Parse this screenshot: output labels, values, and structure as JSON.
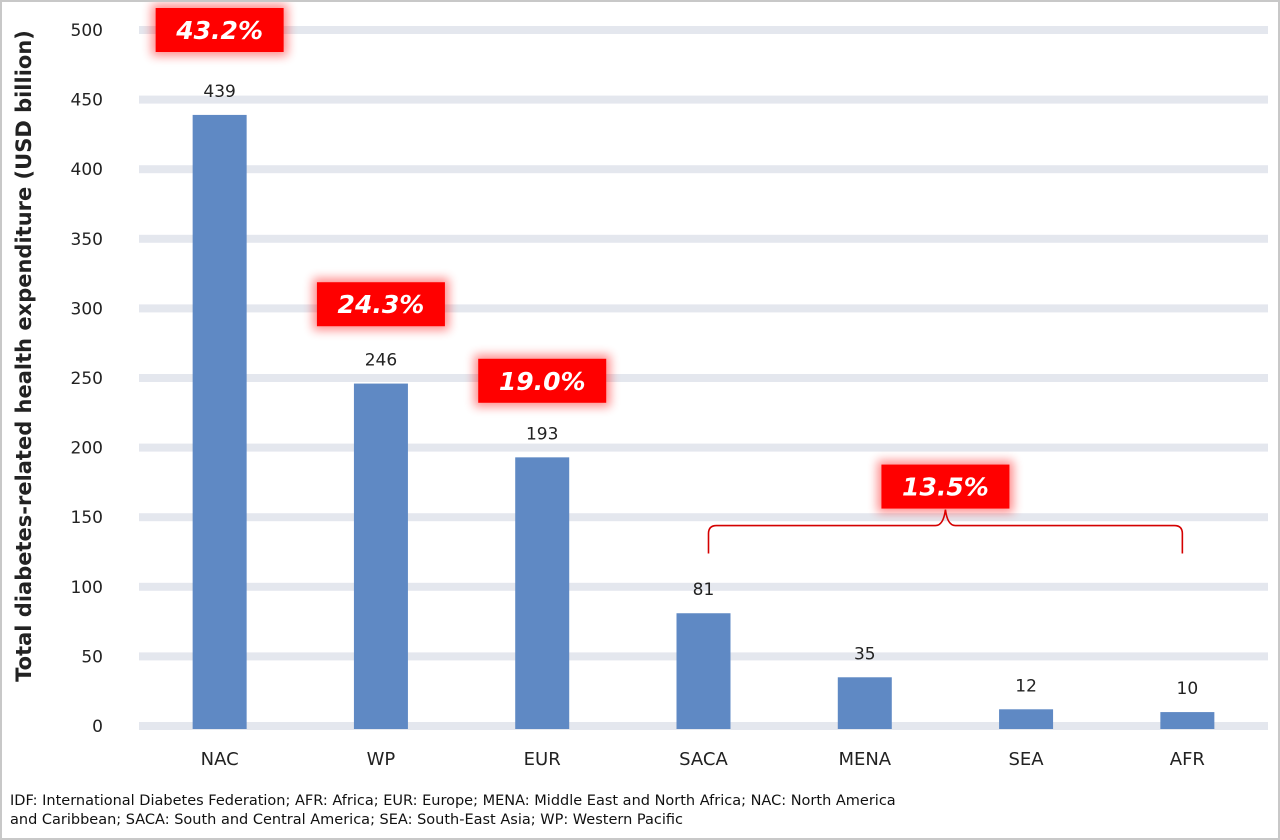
{
  "chart_data": {
    "type": "bar",
    "categories": [
      "NAC",
      "WP",
      "EUR",
      "SACA",
      "MENA",
      "SEA",
      "AFR"
    ],
    "values": [
      439,
      246,
      193,
      81,
      35,
      12,
      10
    ],
    "value_labels": [
      "439",
      "246",
      "193",
      "81",
      "35",
      "12",
      "10"
    ],
    "ylabel": "Total diabetes-related health expenditure (USD billion)",
    "xlabel": "",
    "title": "",
    "ylim": [
      0,
      500
    ],
    "yticks": [
      0,
      50,
      100,
      150,
      200,
      250,
      300,
      350,
      400,
      450,
      500
    ],
    "ytick_labels": [
      "0",
      "50",
      "100",
      "150",
      "200",
      "250",
      "300",
      "350",
      "400",
      "450",
      "500"
    ],
    "grid": true,
    "bar_color": "#5f89c4",
    "grid_color": "#e4e7ee",
    "annotations": [
      {
        "text": "43.2%",
        "target": "NAC",
        "level": 500
      },
      {
        "text": "24.3%",
        "target": "WP",
        "level": 303
      },
      {
        "text": "19.0%",
        "target": "EUR",
        "level": 248
      },
      {
        "text": "13.5%",
        "targets": [
          "SACA",
          "MENA",
          "SEA",
          "AFR"
        ],
        "level": 172
      }
    ],
    "annotation_color": "#ff0000"
  },
  "footnote": "IDF: International Diabetes Federation; AFR: Africa; EUR: Europe; MENA: Middle East and North Africa; NAC: North America and Caribbean; SACA: South and Central America; SEA: South-East Asia; WP: Western Pacific"
}
